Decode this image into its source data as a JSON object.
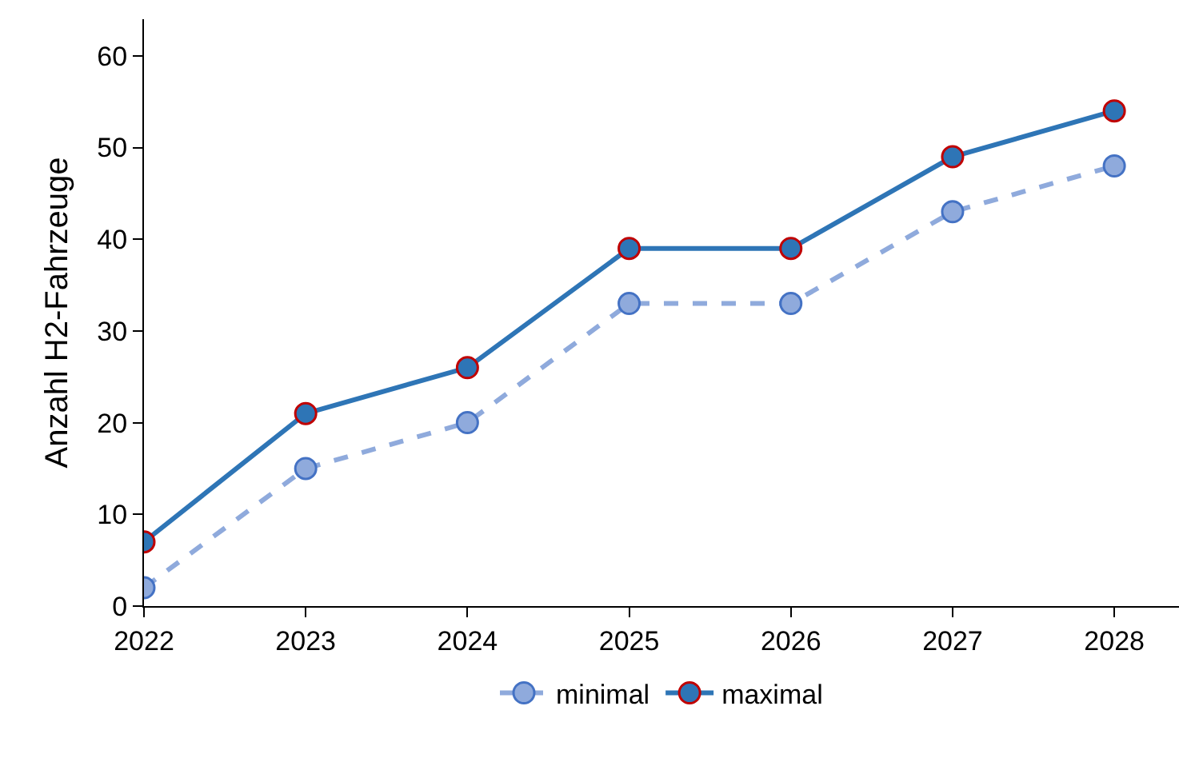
{
  "chart_data": {
    "type": "line",
    "ylabel": "Anzahl H2-Fahrzeuge",
    "x": [
      2022,
      2023,
      2024,
      2025,
      2026,
      2027,
      2028
    ],
    "xlim": [
      2022,
      2028.4
    ],
    "xticks": [
      2022,
      2023,
      2024,
      2025,
      2026,
      2027,
      2028
    ],
    "ylim": [
      0,
      64
    ],
    "yticks": [
      0,
      10,
      20,
      30,
      40,
      50,
      60
    ],
    "grid": false,
    "legend": "bottom",
    "marker": "circle",
    "series": [
      {
        "name": "minimal",
        "color": "#8faadc",
        "line_style": "dashed",
        "values": [
          2,
          15,
          20,
          33,
          33,
          43,
          48
        ]
      },
      {
        "name": "maximal",
        "color": "#2e75b6",
        "line_style": "solid",
        "values": [
          7,
          21,
          26,
          39,
          39,
          49,
          54
        ]
      }
    ]
  }
}
